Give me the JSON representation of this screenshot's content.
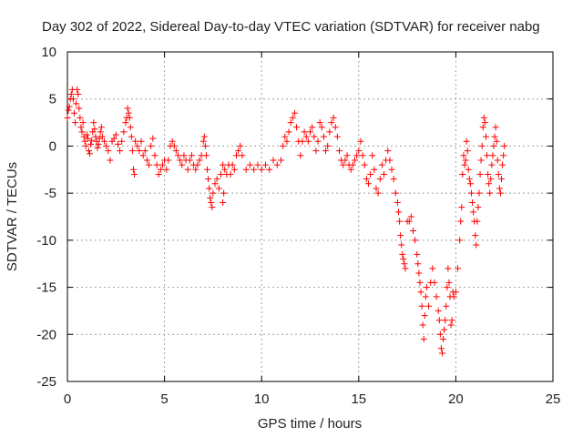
{
  "chart_data": {
    "type": "scatter",
    "title": "Day 302 of 2022, Sidereal Day-to-day VTEC variation (SDTVAR) for receiver nabg",
    "xlabel": "GPS time / hours",
    "ylabel": "SDTVAR / TECUs",
    "xlim": [
      0,
      25
    ],
    "ylim": [
      -25,
      10
    ],
    "xticks": [
      0,
      5,
      10,
      15,
      20,
      25
    ],
    "yticks": [
      -25,
      -20,
      -15,
      -10,
      -5,
      0,
      5,
      10
    ],
    "xtick_labels": [
      "0",
      "5",
      "10",
      "15",
      "20",
      "25"
    ],
    "ytick_labels": [
      "-25",
      "-20",
      "-15",
      "-10",
      "-5",
      "0",
      "5",
      "10"
    ],
    "grid": true,
    "marker": "+",
    "color": "#ff0000",
    "series": [
      {
        "name": "SDTVAR",
        "points": [
          [
            0.0,
            3.0
          ],
          [
            0.05,
            3.8
          ],
          [
            0.1,
            4.2
          ],
          [
            0.15,
            5.0
          ],
          [
            0.2,
            5.5
          ],
          [
            0.25,
            6.0
          ],
          [
            0.3,
            5.0
          ],
          [
            0.35,
            3.5
          ],
          [
            0.4,
            2.5
          ],
          [
            0.45,
            4.5
          ],
          [
            0.5,
            6.0
          ],
          [
            0.55,
            5.5
          ],
          [
            0.6,
            4.0
          ],
          [
            0.65,
            3.0
          ],
          [
            0.7,
            2.0
          ],
          [
            0.75,
            1.5
          ],
          [
            0.8,
            2.5
          ],
          [
            0.85,
            1.0
          ],
          [
            0.9,
            0.5
          ],
          [
            0.95,
            0.0
          ],
          [
            1.0,
            1.2
          ],
          [
            1.05,
            0.8
          ],
          [
            1.1,
            -0.5
          ],
          [
            1.15,
            -0.8
          ],
          [
            1.2,
            0.2
          ],
          [
            1.25,
            0.6
          ],
          [
            1.3,
            1.5
          ],
          [
            1.35,
            2.5
          ],
          [
            1.4,
            1.8
          ],
          [
            1.45,
            1.0
          ],
          [
            1.5,
            0.5
          ],
          [
            1.55,
            -0.2
          ],
          [
            1.6,
            0.2
          ],
          [
            1.65,
            0.8
          ],
          [
            1.7,
            1.5
          ],
          [
            1.75,
            2.0
          ],
          [
            1.8,
            1.0
          ],
          [
            1.9,
            0.5
          ],
          [
            2.0,
            0.0
          ],
          [
            2.1,
            -0.5
          ],
          [
            2.2,
            -1.5
          ],
          [
            2.3,
            0.5
          ],
          [
            2.4,
            0.8
          ],
          [
            2.5,
            1.2
          ],
          [
            2.6,
            0.2
          ],
          [
            2.7,
            -0.5
          ],
          [
            2.8,
            0.5
          ],
          [
            2.9,
            1.5
          ],
          [
            3.0,
            2.5
          ],
          [
            3.05,
            3.0
          ],
          [
            3.1,
            4.0
          ],
          [
            3.15,
            3.5
          ],
          [
            3.2,
            3.0
          ],
          [
            3.25,
            2.0
          ],
          [
            3.3,
            1.0
          ],
          [
            3.35,
            -0.5
          ],
          [
            3.4,
            -2.5
          ],
          [
            3.45,
            -3.0
          ],
          [
            3.5,
            0.5
          ],
          [
            3.6,
            0.0
          ],
          [
            3.7,
            -0.5
          ],
          [
            3.8,
            0.5
          ],
          [
            3.9,
            -1.0
          ],
          [
            4.0,
            -0.5
          ],
          [
            4.1,
            -1.5
          ],
          [
            4.2,
            -2.0
          ],
          [
            4.3,
            0.0
          ],
          [
            4.4,
            0.8
          ],
          [
            4.5,
            -1.0
          ],
          [
            4.6,
            -2.0
          ],
          [
            4.7,
            -3.0
          ],
          [
            4.8,
            -2.5
          ],
          [
            4.9,
            -2.0
          ],
          [
            5.0,
            -1.5
          ],
          [
            5.1,
            -2.5
          ],
          [
            5.2,
            -1.5
          ],
          [
            5.3,
            0.0
          ],
          [
            5.4,
            0.5
          ],
          [
            5.5,
            0.0
          ],
          [
            5.6,
            -0.5
          ],
          [
            5.7,
            -1.0
          ],
          [
            5.8,
            -1.5
          ],
          [
            5.9,
            -2.0
          ],
          [
            6.0,
            -1.0
          ],
          [
            6.1,
            -1.5
          ],
          [
            6.2,
            -2.5
          ],
          [
            6.3,
            -1.5
          ],
          [
            6.4,
            -1.0
          ],
          [
            6.5,
            -2.0
          ],
          [
            6.6,
            -2.5
          ],
          [
            6.7,
            -2.0
          ],
          [
            6.8,
            -1.5
          ],
          [
            6.9,
            -1.0
          ],
          [
            7.0,
            0.5
          ],
          [
            7.05,
            1.0
          ],
          [
            7.1,
            0.0
          ],
          [
            7.15,
            -1.0
          ],
          [
            7.2,
            -2.5
          ],
          [
            7.25,
            -3.5
          ],
          [
            7.3,
            -4.5
          ],
          [
            7.35,
            -5.5
          ],
          [
            7.4,
            -6.0
          ],
          [
            7.45,
            -6.5
          ],
          [
            7.5,
            -5.0
          ],
          [
            7.6,
            -4.0
          ],
          [
            7.7,
            -3.5
          ],
          [
            7.8,
            -4.5
          ],
          [
            7.9,
            -3.0
          ],
          [
            8.0,
            -2.0
          ],
          [
            8.0,
            -6.0
          ],
          [
            8.05,
            -5.0
          ],
          [
            8.1,
            -2.5
          ],
          [
            8.2,
            -3.0
          ],
          [
            8.3,
            -2.0
          ],
          [
            8.4,
            -3.0
          ],
          [
            8.5,
            -2.0
          ],
          [
            8.6,
            -2.5
          ],
          [
            8.7,
            -1.0
          ],
          [
            8.8,
            -0.5
          ],
          [
            8.9,
            0.0
          ],
          [
            9.0,
            -1.0
          ],
          [
            9.2,
            -2.5
          ],
          [
            9.4,
            -2.0
          ],
          [
            9.6,
            -2.5
          ],
          [
            9.8,
            -2.0
          ],
          [
            10.0,
            -2.5
          ],
          [
            10.2,
            -2.0
          ],
          [
            10.4,
            -2.5
          ],
          [
            10.6,
            -1.5
          ],
          [
            10.8,
            -2.0
          ],
          [
            11.0,
            -1.5
          ],
          [
            11.1,
            0.0
          ],
          [
            11.2,
            1.0
          ],
          [
            11.3,
            0.5
          ],
          [
            11.4,
            1.5
          ],
          [
            11.5,
            2.5
          ],
          [
            11.6,
            3.0
          ],
          [
            11.7,
            3.5
          ],
          [
            11.8,
            2.0
          ],
          [
            11.9,
            0.5
          ],
          [
            12.0,
            -1.0
          ],
          [
            12.1,
            0.5
          ],
          [
            12.2,
            1.5
          ],
          [
            12.3,
            1.0
          ],
          [
            12.4,
            0.5
          ],
          [
            12.5,
            1.5
          ],
          [
            12.6,
            2.0
          ],
          [
            12.7,
            1.0
          ],
          [
            12.8,
            -0.5
          ],
          [
            12.9,
            0.5
          ],
          [
            13.0,
            2.5
          ],
          [
            13.1,
            2.0
          ],
          [
            13.2,
            1.0
          ],
          [
            13.3,
            -0.5
          ],
          [
            13.4,
            0.0
          ],
          [
            13.5,
            1.5
          ],
          [
            13.6,
            2.5
          ],
          [
            13.7,
            3.0
          ],
          [
            13.8,
            2.0
          ],
          [
            13.9,
            1.0
          ],
          [
            14.0,
            -0.5
          ],
          [
            14.1,
            -1.5
          ],
          [
            14.2,
            -2.0
          ],
          [
            14.3,
            -1.5
          ],
          [
            14.4,
            -1.0
          ],
          [
            14.5,
            -2.0
          ],
          [
            14.6,
            -2.5
          ],
          [
            14.7,
            -2.0
          ],
          [
            14.8,
            -1.5
          ],
          [
            14.9,
            -1.0
          ],
          [
            15.0,
            -0.5
          ],
          [
            15.1,
            0.5
          ],
          [
            15.2,
            -1.0
          ],
          [
            15.3,
            -2.0
          ],
          [
            15.4,
            -3.5
          ],
          [
            15.5,
            -4.0
          ],
          [
            15.6,
            -3.0
          ],
          [
            15.7,
            -1.0
          ],
          [
            15.8,
            -2.5
          ],
          [
            15.9,
            -4.5
          ],
          [
            16.0,
            -5.0
          ],
          [
            16.1,
            -3.5
          ],
          [
            16.2,
            -2.0
          ],
          [
            16.3,
            -3.0
          ],
          [
            16.4,
            -1.5
          ],
          [
            16.5,
            -0.5
          ],
          [
            16.6,
            -1.5
          ],
          [
            16.7,
            -2.5
          ],
          [
            16.8,
            -3.5
          ],
          [
            16.9,
            -5.0
          ],
          [
            17.0,
            -6.0
          ],
          [
            17.05,
            -7.0
          ],
          [
            17.1,
            -8.0
          ],
          [
            17.15,
            -9.5
          ],
          [
            17.2,
            -10.5
          ],
          [
            17.25,
            -11.5
          ],
          [
            17.3,
            -12.0
          ],
          [
            17.35,
            -12.5
          ],
          [
            17.4,
            -13.0
          ],
          [
            17.5,
            -8.0
          ],
          [
            17.6,
            -8.0
          ],
          [
            17.7,
            -7.5
          ],
          [
            17.8,
            -9.0
          ],
          [
            17.9,
            -10.0
          ],
          [
            18.0,
            -11.5
          ],
          [
            18.05,
            -12.5
          ],
          [
            18.1,
            -13.5
          ],
          [
            18.15,
            -14.5
          ],
          [
            18.2,
            -15.5
          ],
          [
            18.25,
            -17.0
          ],
          [
            18.3,
            -19.0
          ],
          [
            18.35,
            -20.5
          ],
          [
            18.4,
            -18.0
          ],
          [
            18.45,
            -16.0
          ],
          [
            18.5,
            -15.0
          ],
          [
            18.6,
            -17.0
          ],
          [
            18.7,
            -14.5
          ],
          [
            18.8,
            -13.0
          ],
          [
            18.9,
            -14.5
          ],
          [
            19.0,
            -16.0
          ],
          [
            19.1,
            -17.5
          ],
          [
            19.15,
            -18.5
          ],
          [
            19.2,
            -20.0
          ],
          [
            19.25,
            -21.5
          ],
          [
            19.3,
            -22.0
          ],
          [
            19.35,
            -20.5
          ],
          [
            19.4,
            -19.5
          ],
          [
            19.45,
            -18.5
          ],
          [
            19.5,
            -17.0
          ],
          [
            19.55,
            -15.0
          ],
          [
            19.6,
            -13.0
          ],
          [
            19.65,
            -14.5
          ],
          [
            19.7,
            -16.0
          ],
          [
            19.75,
            -19.0
          ],
          [
            19.8,
            -18.5
          ],
          [
            19.85,
            -15.5
          ],
          [
            19.9,
            -16.0
          ],
          [
            20.0,
            -15.5
          ],
          [
            20.1,
            -13.0
          ],
          [
            20.2,
            -10.0
          ],
          [
            20.25,
            -8.0
          ],
          [
            20.3,
            -6.5
          ],
          [
            20.35,
            -3.0
          ],
          [
            20.4,
            -1.0
          ],
          [
            20.45,
            -2.0
          ],
          [
            20.5,
            -1.5
          ],
          [
            20.55,
            0.5
          ],
          [
            20.6,
            -0.5
          ],
          [
            20.65,
            -2.5
          ],
          [
            20.7,
            -3.5
          ],
          [
            20.75,
            -4.0
          ],
          [
            20.8,
            -5.0
          ],
          [
            20.85,
            -6.0
          ],
          [
            20.9,
            -7.0
          ],
          [
            20.95,
            -8.0
          ],
          [
            21.0,
            -9.5
          ],
          [
            21.05,
            -10.5
          ],
          [
            21.1,
            -8.0
          ],
          [
            21.15,
            -6.5
          ],
          [
            21.2,
            -5.0
          ],
          [
            21.25,
            -3.0
          ],
          [
            21.3,
            -1.5
          ],
          [
            21.35,
            0.0
          ],
          [
            21.4,
            2.0
          ],
          [
            21.45,
            3.0
          ],
          [
            21.5,
            2.5
          ],
          [
            21.55,
            1.0
          ],
          [
            21.6,
            -1.0
          ],
          [
            21.65,
            -3.0
          ],
          [
            21.7,
            -4.0
          ],
          [
            21.75,
            -5.0
          ],
          [
            21.8,
            -3.5
          ],
          [
            21.85,
            -2.0
          ],
          [
            21.9,
            -1.0
          ],
          [
            21.95,
            0.0
          ],
          [
            22.0,
            1.0
          ],
          [
            22.05,
            2.0
          ],
          [
            22.1,
            0.5
          ],
          [
            22.15,
            -1.5
          ],
          [
            22.2,
            -3.0
          ],
          [
            22.25,
            -4.5
          ],
          [
            22.3,
            -5.0
          ],
          [
            22.35,
            -3.5
          ],
          [
            22.4,
            -2.0
          ],
          [
            22.45,
            -1.0
          ],
          [
            22.5,
            0.0
          ]
        ]
      }
    ]
  }
}
